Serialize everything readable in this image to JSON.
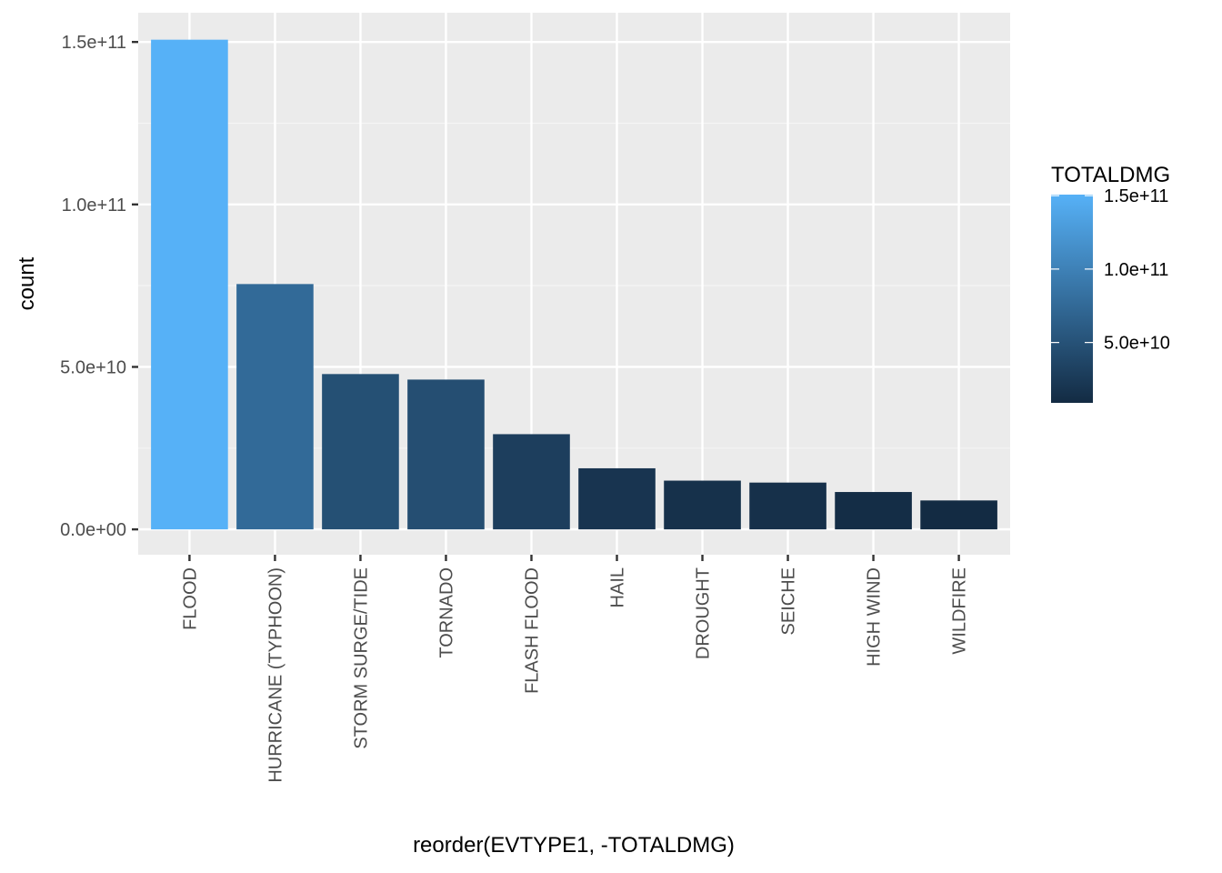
{
  "chart_data": {
    "type": "bar",
    "title": "",
    "xlabel": "reorder(EVTYPE1, -TOTALDMG)",
    "ylabel": "count",
    "categories": [
      "FLOOD",
      "HURRICANE (TYPHOON)",
      "STORM SURGE/TIDE",
      "TORNADO",
      "FLASH FLOOD",
      "HAIL",
      "DROUGHT",
      "SEICHE",
      "HIGH WIND",
      "WILDFIRE"
    ],
    "values": [
      150700000000,
      75500000000,
      47800000000,
      46100000000,
      29300000000,
      18800000000,
      15000000000,
      14400000000,
      11500000000,
      8900000000
    ],
    "ylim": [
      -7800000000,
      159000000000
    ],
    "yticks": [
      0,
      50000000000,
      100000000000,
      150000000000
    ],
    "ytick_labels": [
      "0.0e+00",
      "5.0e+10",
      "1.0e+11",
      "1.5e+11"
    ],
    "grid": true,
    "legend": {
      "title": "TOTALDMG",
      "placement": "right",
      "type": "colorbar",
      "min": 8900000000,
      "max": 150700000000,
      "breaks": [
        50000000000,
        100000000000,
        150000000000
      ],
      "labels": [
        "5.0e+10",
        "1.0e+11",
        "1.5e+11"
      ],
      "low_color": "#132b43",
      "high_color": "#56b1f7"
    },
    "colors": {
      "panel_background": "#ebebeb",
      "grid_major": "#ffffff",
      "grid_minor": "#f5f5f5"
    }
  }
}
